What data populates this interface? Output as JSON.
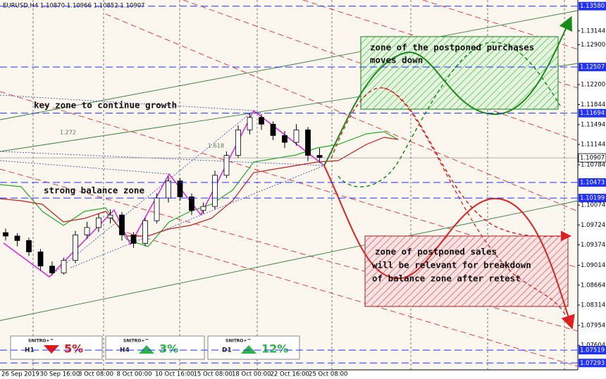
{
  "chart_data": {
    "type": "candlestick",
    "title": "EURUSD,H4  1.10870 1.10966 1.10852 1.10907",
    "x_labels": [
      "26 Sep 2019",
      "30 Sep 16:00",
      "3 Oct 08:00",
      "8 Oct 00:00",
      "10 Oct 16:00",
      "15 Oct 08:00",
      "18 Oct 00:00",
      "22 Oct 16:00",
      "25 Oct 08:00"
    ],
    "open": [
      1.0959,
      1.0953,
      1.0945,
      1.0925,
      1.09,
      1.0888,
      1.091,
      1.0955,
      1.0968,
      1.0985,
      1.099,
      1.0955,
      1.094,
      1.098,
      1.102,
      1.105,
      1.1022,
      1.0998,
      1.1005,
      1.106,
      1.1095,
      1.114,
      1.1162,
      1.115,
      1.113,
      1.1118,
      1.114,
      1.1095
    ],
    "high": [
      1.0966,
      1.0958,
      1.095,
      1.093,
      1.0908,
      1.0915,
      1.0962,
      1.0978,
      1.0992,
      1.1,
      1.0995,
      1.096,
      1.0985,
      1.1028,
      1.1058,
      1.1055,
      1.1028,
      1.1012,
      1.1068,
      1.1102,
      1.1148,
      1.117,
      1.1168,
      1.1155,
      1.1138,
      1.115,
      1.1145,
      1.1108
    ],
    "low": [
      1.0945,
      1.0935,
      1.0918,
      1.0892,
      1.0884,
      1.0885,
      1.0905,
      1.0948,
      1.096,
      1.0975,
      1.0945,
      1.0932,
      1.0935,
      1.0975,
      1.1012,
      1.1015,
      1.099,
      1.0992,
      1.1,
      1.1055,
      1.109,
      1.1132,
      1.114,
      1.1122,
      1.1108,
      1.1112,
      1.1085,
      1.1082
    ],
    "close": [
      1.0953,
      1.0945,
      1.0925,
      1.09,
      1.0888,
      1.091,
      1.0955,
      1.0968,
      1.0985,
      1.099,
      1.0955,
      1.094,
      1.098,
      1.102,
      1.105,
      1.1022,
      1.0998,
      1.1005,
      1.106,
      1.1095,
      1.114,
      1.1162,
      1.115,
      1.113,
      1.1118,
      1.114,
      1.1095,
      1.1091
    ],
    "ylim": [
      1.07172,
      1.13688
    ],
    "yticks": [
      1.13144,
      {
        "value": 1.129,
        "label": "1.12900"
      },
      {
        "value": 1.122,
        "label": "1.12200"
      },
      1.11844,
      1.11494,
      1.11144,
      1.10784,
      1.10074,
      1.09724,
      1.09374,
      1.09014,
      1.08664,
      1.08314,
      1.07954,
      1.07604
    ],
    "levels": [
      {
        "value": 1.1358,
        "label": "1.13580"
      },
      {
        "value": 1.12507,
        "label": "1.12507"
      },
      {
        "value": 1.11694,
        "label": "1.11694"
      },
      {
        "value": 1.10473,
        "label": "1.10473"
      },
      {
        "value": 1.10199,
        "label": "1.10199"
      },
      {
        "value": 1.07519,
        "label": "1.07519"
      },
      {
        "value": 1.07293,
        "label": "1.07293"
      }
    ],
    "level_color": "#2030ff",
    "current_price": {
      "value": 1.10907,
      "label": "1.10907"
    },
    "annotations": {
      "key_zone": "key zone to continue growth",
      "balance_zone": "strong balance zone",
      "purchases": [
        "zone of the postponed purchases",
        "moves down"
      ],
      "sales": [
        "zone of postponed sales",
        "will be relevant for breakdown",
        "of balance zone after retest"
      ]
    },
    "fib_labels": [
      "1.272",
      "1.618"
    ],
    "indicators": [
      {
        "brand": "SNITRO+™",
        "timeframe": "H1",
        "direction": "down",
        "value": 5,
        "value_label": "5%"
      },
      {
        "brand": "SNITRO+™",
        "timeframe": "H4",
        "direction": "up",
        "value": 3,
        "value_label": "3%"
      },
      {
        "brand": "SNITRO+™",
        "timeframe": "D1",
        "direction": "up",
        "value": 12,
        "value_label": "12%"
      }
    ]
  }
}
